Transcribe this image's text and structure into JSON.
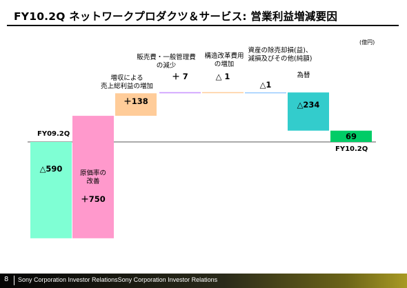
{
  "title": "FY10.2Q ネットワークプロダクツ＆サービス: 営業利益増減要因",
  "unit": "(億円)",
  "footer": {
    "page_number": "8",
    "text": "Sony Corporation Investor RelationsSony Corporation Investor Relations"
  },
  "colors": {
    "fy09": "#7fffd4",
    "cost": "#ff99cc",
    "sales": "#ffcc99",
    "sga": "#cc99ff",
    "restructuring": "#ffcc99",
    "other": "#99ccff",
    "forex": "#33cccc",
    "fy10": "#00cc66"
  },
  "chart_data": {
    "type": "bar",
    "subtype": "waterfall",
    "title": "FY10.2Q ネットワークプロダクツ＆サービス: 営業利益増減要因",
    "unit": "(億円)",
    "start_label": "FY09.2Q",
    "end_label": "FY10.2Q",
    "steps": [
      {
        "key": "fy09",
        "category": "",
        "value_label": "△590",
        "value": -590,
        "kind": "total"
      },
      {
        "key": "cost",
        "category": "原価率の\n改善",
        "value_label": "＋750",
        "value": 750,
        "kind": "delta"
      },
      {
        "key": "sales",
        "category": "増収による\n売上総利益の増加",
        "value_label": "＋138",
        "value": 138,
        "kind": "delta"
      },
      {
        "key": "sga",
        "category": "販売費・一般管理費\nの減少",
        "value_label": "＋ 7",
        "value": 7,
        "kind": "delta"
      },
      {
        "key": "restructuring",
        "category": "構造改革費用\nの増加",
        "value_label": "△ 1",
        "value": -1,
        "kind": "delta"
      },
      {
        "key": "other",
        "category": "資産の除売却損(益)、\n減損及びその他(純額)",
        "value_label": "△1",
        "value": -1,
        "kind": "delta"
      },
      {
        "key": "forex",
        "category": "為替",
        "value_label": "△234",
        "value": -234,
        "kind": "delta"
      },
      {
        "key": "fy10",
        "category": "",
        "value_label": "69",
        "value": 69,
        "kind": "total"
      }
    ],
    "ylim": [
      -750,
      500
    ],
    "grid": false,
    "legend": "none"
  }
}
